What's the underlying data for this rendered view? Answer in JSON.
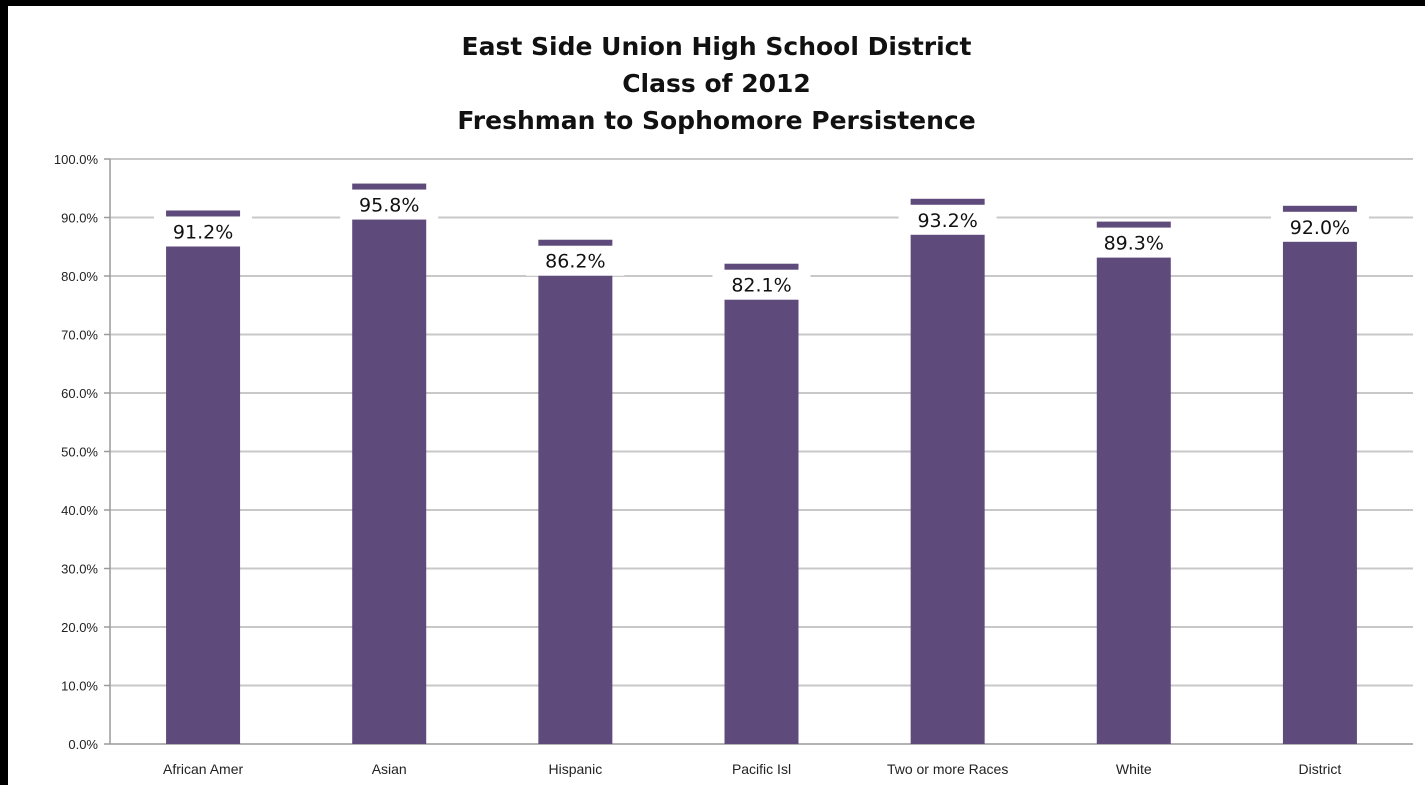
{
  "chart_data": {
    "type": "bar",
    "title": [
      "East Side Union High School District",
      "Class of 2012",
      "Freshman to Sophomore Persistence"
    ],
    "categories": [
      "African Amer",
      "Asian",
      "Hispanic",
      "Pacific Isl",
      "Two or more Races",
      "White",
      "District"
    ],
    "values": [
      91.2,
      95.8,
      86.2,
      82.1,
      93.2,
      89.3,
      92.0
    ],
    "value_labels": [
      "91.2%",
      "95.8%",
      "86.2%",
      "82.1%",
      "93.2%",
      "89.3%",
      "92.0%"
    ],
    "ylim": [
      0,
      100
    ],
    "yticks": [
      "0.0%",
      "10.0%",
      "20.0%",
      "30.0%",
      "40.0%",
      "50.0%",
      "60.0%",
      "70.0%",
      "80.0%",
      "90.0%",
      "100.0%"
    ],
    "xlabel": "",
    "ylabel": "",
    "grid": true,
    "legend": "none",
    "colors": {
      "bar": "#5e4a7b",
      "grid": "#c8c8c8",
      "background": "#ffffff",
      "frame": "#000000"
    }
  }
}
